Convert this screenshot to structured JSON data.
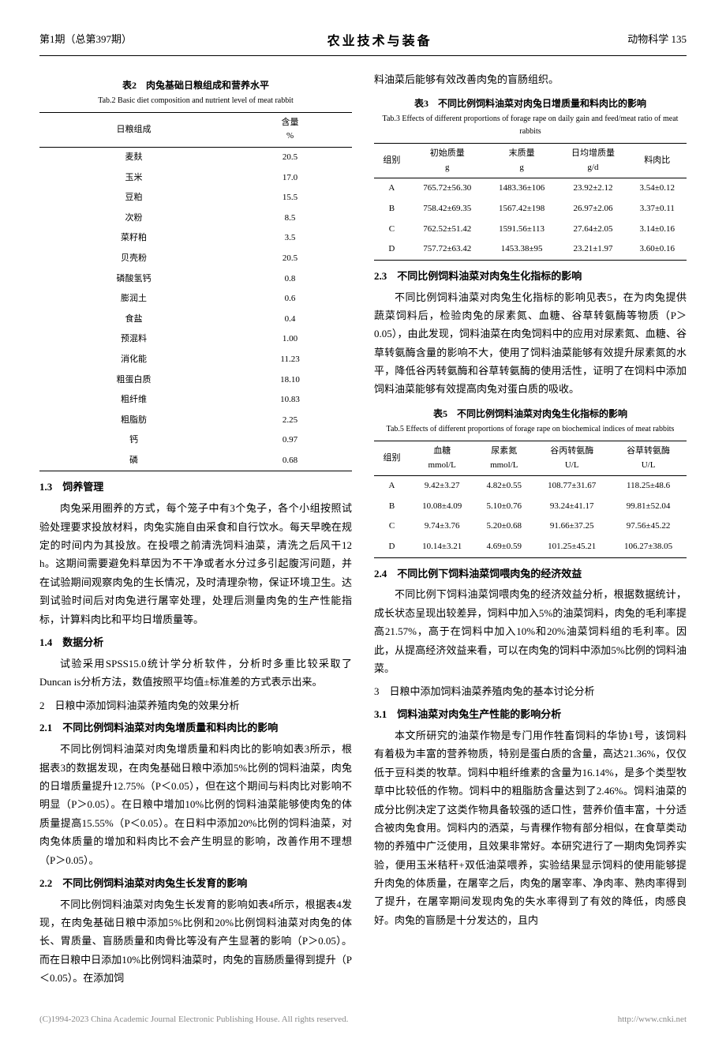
{
  "header": {
    "left": "第1期（总第397期）",
    "center": "农业技术与装备",
    "right": "动物科学 135"
  },
  "table2": {
    "title": "表2　肉兔基础日粮组成和营养水平",
    "subtitle": "Tab.2 Basic diet composition and nutrient level of meat rabbit",
    "head": [
      "日粮组成",
      "含量\n%"
    ],
    "rows": [
      [
        "麦麸",
        "20.5"
      ],
      [
        "玉米",
        "17.0"
      ],
      [
        "豆粕",
        "15.5"
      ],
      [
        "次粉",
        "8.5"
      ],
      [
        "菜籽粕",
        "3.5"
      ],
      [
        "贝壳粉",
        "20.5"
      ],
      [
        "磷酸氢钙",
        "0.8"
      ],
      [
        "膨润土",
        "0.6"
      ],
      [
        "食盐",
        "0.4"
      ],
      [
        "预混料",
        "1.00"
      ],
      [
        "消化能",
        "11.23"
      ],
      [
        "粗蛋白质",
        "18.10"
      ],
      [
        "粗纤维",
        "10.83"
      ],
      [
        "粗脂肪",
        "2.25"
      ],
      [
        "钙",
        "0.97"
      ],
      [
        "磷",
        "0.68"
      ]
    ]
  },
  "sec13": {
    "title": "1.3　饲养管理",
    "body": "肉兔采用圈养的方式，每个笼子中有3个兔子，各个小组按照试验处理要求投放材料，肉兔实施自由采食和自行饮水。每天早晚在规定的时间内为其投放。在投喂之前清洗饲料油菜，清洗之后风干12 h。这期间需要避免料草因为不干净或者水分过多引起腹泻问题，并在试验期间观察肉兔的生长情况，及时清理杂物，保证环境卫生。达到试验时间后对肉兔进行屠宰处理，处理后测量肉兔的生产性能指标，计算料肉比和平均日增质量等。"
  },
  "sec14": {
    "title": "1.4　数据分析",
    "body": "试验采用SPSS15.0统计学分析软件，分析时多重比较采取了Duncan is分析方法，数值按照平均值±标准差的方式表示出来。"
  },
  "sec2": {
    "title": "2　日粮中添加饲料油菜养殖肉兔的效果分析"
  },
  "sec21": {
    "title": "2.1　不同比例饲料油菜对肉兔增质量和料肉比的影响",
    "body": "不同比例饲料油菜对肉兔增质量和料肉比的影响如表3所示，根据表3的数据发现，在肉兔基础日粮中添加5%比例的饲料油菜，肉兔的日增质量提升12.75%（P＜0.05），但在这个期间与料肉比对影响不明显（P＞0.05）。在日粮中增加10%比例的饲料油菜能够使肉兔的体质量提高15.55%（P＜0.05）。在日料中添加20%比例的饲料油菜，对肉兔体质量的增加和料肉比不会产生明显的影响，改善作用不理想（P＞0.05）。"
  },
  "sec22": {
    "title": "2.2　不同比例饲料油菜对肉兔生长发育的影响",
    "body": "不同比例饲料油菜对肉兔生长发育的影响如表4所示，根据表4发现，在肉兔基础日粮中添加5%比例和20%比例饲料油菜对肉兔的体长、胃质量、盲肠质量和肉骨比等没有产生显著的影响（P＞0.05）。而在日粮中日添加10%比例饲料油菜时，肉兔的盲肠质量得到提升（P＜0.05）。在添加饲"
  },
  "rightTop": "料油菜后能够有效改善肉兔的盲肠组织。",
  "table3": {
    "title": "表3　不同比例饲料油菜对肉兔日增质量和料肉比的影响",
    "subtitle": "Tab.3 Effects of different proportions of forage rape on daily gain and feed/meat ratio of meat rabbits",
    "head": [
      "组别",
      "初始质量\ng",
      "末质量\ng",
      "日均增质量\ng/d",
      "料肉比"
    ],
    "rows": [
      [
        "A",
        "765.72±56.30",
        "1483.36±106",
        "23.92±2.12",
        "3.54±0.12"
      ],
      [
        "B",
        "758.42±69.35",
        "1567.42±198",
        "26.97±2.06",
        "3.37±0.11"
      ],
      [
        "C",
        "762.52±51.42",
        "1591.56±113",
        "27.64±2.05",
        "3.14±0.16"
      ],
      [
        "D",
        "757.72±63.42",
        "1453.38±95",
        "23.21±1.97",
        "3.60±0.16"
      ]
    ]
  },
  "sec23": {
    "title": "2.3　不同比例饲料油菜对肉兔生化指标的影响",
    "body": "不同比例饲料油菜对肉兔生化指标的影响见表5，在为肉兔提供蔬菜饲料后，检验肉兔的尿素氮、血糖、谷草转氨酶等物质（P＞0.05），由此发现，饲料油菜在肉兔饲料中的应用对尿素氮、血糖、谷草转氨酶含量的影响不大，使用了饲料油菜能够有效提升尿素氮的水平，降低谷丙转氨酶和谷草转氨酶的使用活性，证明了在饲料中添加饲料油菜能够有效提高肉兔对蛋白质的吸收。"
  },
  "table5": {
    "title": "表5　不同比例饲料油菜对肉兔生化指标的影响",
    "subtitle": "Tab.5 Effects of different proportions of forage rape on biochemical indices of meat rabbits",
    "head": [
      "组别",
      "血糖\nmmol/L",
      "尿素氮\nmmol/L",
      "谷丙转氨酶\nU/L",
      "谷草转氨酶\nU/L"
    ],
    "rows": [
      [
        "A",
        "9.42±3.27",
        "4.82±0.55",
        "108.77±31.67",
        "118.25±48.6"
      ],
      [
        "B",
        "10.08±4.09",
        "5.10±0.76",
        "93.24±41.17",
        "99.81±52.04"
      ],
      [
        "C",
        "9.74±3.76",
        "5.20±0.68",
        "91.66±37.25",
        "97.56±45.22"
      ],
      [
        "D",
        "10.14±3.21",
        "4.69±0.59",
        "101.25±45.21",
        "106.27±38.05"
      ]
    ]
  },
  "sec24": {
    "title": "2.4　不同比例下饲料油菜饲喂肉兔的经济效益",
    "body": "不同比例下饲料油菜饲喂肉兔的经济效益分析，根据数据统计，成长状态呈现出较差异，饲料中加入5%的油菜饲料，肉兔的毛利率提高21.57%，高于在饲料中加入10%和20%油菜饲料组的毛利率。因此，从提高经济效益来看，可以在肉兔的饲料中添加5%比例的饲料油菜。"
  },
  "sec3": {
    "title": "3　日粮中添加饲料油菜养殖肉兔的基本讨论分析"
  },
  "sec31": {
    "title": "3.1　饲料油菜对肉兔生产性能的影响分析",
    "body": "本文所研究的油菜作物是专门用作牲畜饲料的华协1号，该饲料有着极为丰富的营养物质，特别是蛋白质的含量，高达21.36%，仅仅低于豆科类的牧草。饲料中粗纤维素的含量为16.14%，是多个类型牧草中比较低的作物。饲料中的粗脂肪含量达到了2.46%。饲料油菜的成分比例决定了这类作物具备较强的适口性，营养价值丰富，十分适合被肉兔食用。饲料内的洒菜，与青稞作物有部分相似，在食草类动物的养殖中广泛使用，且效果非常好。本研究进行了一期肉兔饲养实验，便用玉米秸秆+双低油菜喂养，实验结果显示饲料的使用能够提升肉兔的体质量，在屠宰之后，肉兔的屠宰率、净肉率、熟肉率得到了提升，在屠宰期间发现肉兔的失水率得到了有效的降低，肉感良好。肉兔的盲肠是十分发达的，且内"
  },
  "footer": {
    "left": "(C)1994-2023 China Academic Journal Electronic Publishing House. All rights reserved.",
    "right": "http://www.cnki.net"
  }
}
